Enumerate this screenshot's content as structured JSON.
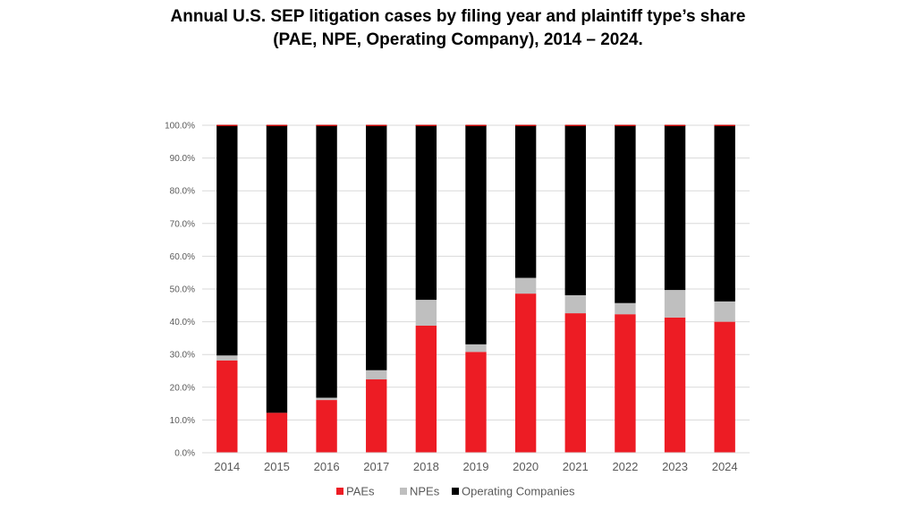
{
  "title_line1": "Annual U.S. SEP litigation cases by filing year and plaintiff type’s share",
  "title_line2": "(PAE, NPE, Operating Company), 2014 – 2024.",
  "chart_data": {
    "type": "bar",
    "stacked": true,
    "categories": [
      "2014",
      "2015",
      "2016",
      "2017",
      "2018",
      "2019",
      "2020",
      "2021",
      "2022",
      "2023",
      "2024"
    ],
    "series": [
      {
        "name": "PAEs",
        "color": "#ED1C24",
        "values": [
          28.2,
          12.2,
          16.1,
          22.4,
          38.8,
          30.8,
          48.6,
          42.6,
          42.3,
          41.3,
          40.0
        ]
      },
      {
        "name": "NPEs",
        "color": "#BFBFBF",
        "values": [
          1.5,
          0.0,
          0.7,
          2.8,
          7.9,
          2.3,
          4.8,
          5.5,
          3.4,
          8.4,
          6.2
        ]
      },
      {
        "name": "Operating Companies",
        "color": "#000000",
        "values": [
          70.3,
          87.8,
          83.2,
          74.8,
          53.3,
          66.9,
          46.6,
          51.9,
          54.3,
          50.3,
          53.8
        ]
      }
    ],
    "ylim": [
      0,
      100
    ],
    "yticks": [
      "0.0%",
      "10.0%",
      "20.0%",
      "30.0%",
      "40.0%",
      "50.0%",
      "60.0%",
      "70.0%",
      "80.0%",
      "90.0%",
      "100.0%"
    ],
    "grid": true,
    "legend": "bottom",
    "top_marker_color": "#C00000"
  }
}
